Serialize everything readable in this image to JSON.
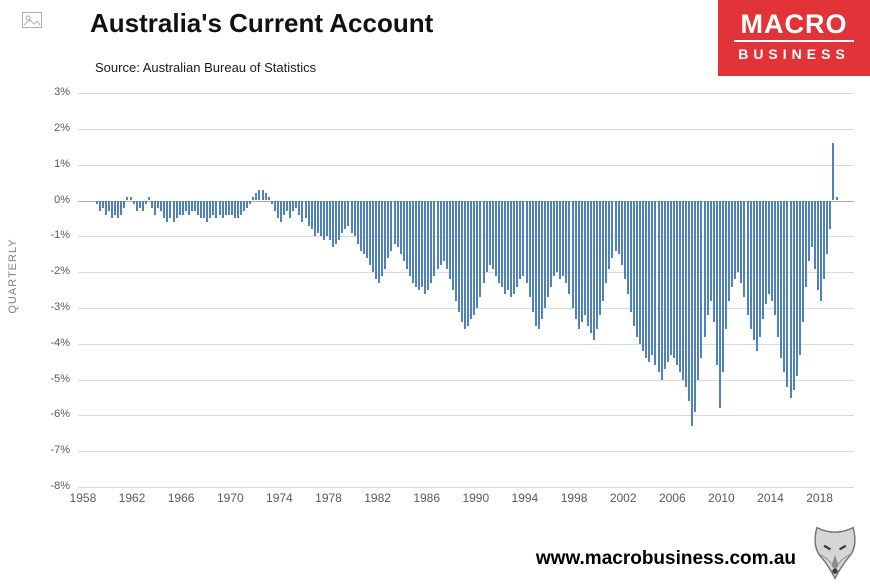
{
  "header": {
    "title": "Australia's Current Account",
    "source": "Source: Australian Bureau of Statistics"
  },
  "logo": {
    "line1": "MACRO",
    "line2": "BUSINESS",
    "bg_color": "#e23438"
  },
  "footer": {
    "website": "www.macrobusiness.com.au"
  },
  "chart_data": {
    "type": "bar",
    "title": "Australia's Current Account",
    "subtitle": "Source: Australian Bureau of Statistics",
    "ylabel": "QUARTERLY",
    "xlabel": "",
    "unit": "percent, quarterly current account balance",
    "bar_color": "#4f81bd",
    "grid": true,
    "legend": "none",
    "ylim": [
      -8,
      3
    ],
    "xlim": [
      1957.6,
      2020.8
    ],
    "yticks": [
      {
        "label": "3%",
        "value": 3
      },
      {
        "label": "2%",
        "value": 2
      },
      {
        "label": "1%",
        "value": 1
      },
      {
        "label": "0%",
        "value": 0
      },
      {
        "label": "-1%",
        "value": -1
      },
      {
        "label": "-2%",
        "value": -2
      },
      {
        "label": "-3%",
        "value": -3
      },
      {
        "label": "-4%",
        "value": -4
      },
      {
        "label": "-5%",
        "value": -5
      },
      {
        "label": "-6%",
        "value": -6
      },
      {
        "label": "-7%",
        "value": -7
      },
      {
        "label": "-8%",
        "value": -8
      }
    ],
    "xticks": [
      1958,
      1962,
      1966,
      1970,
      1974,
      1978,
      1982,
      1986,
      1990,
      1994,
      1998,
      2002,
      2006,
      2010,
      2014,
      2018
    ],
    "series_start_year": 1959,
    "period": "quarterly",
    "values": [
      -0.1,
      -0.3,
      -0.2,
      -0.4,
      -0.3,
      -0.5,
      -0.4,
      -0.5,
      -0.4,
      -0.2,
      0.1,
      0.1,
      -0.1,
      -0.3,
      -0.2,
      -0.3,
      -0.1,
      0.1,
      -0.2,
      -0.4,
      -0.2,
      -0.3,
      -0.5,
      -0.6,
      -0.5,
      -0.6,
      -0.5,
      -0.4,
      -0.4,
      -0.3,
      -0.4,
      -0.3,
      -0.3,
      -0.4,
      -0.5,
      -0.5,
      -0.6,
      -0.5,
      -0.4,
      -0.5,
      -0.4,
      -0.5,
      -0.4,
      -0.4,
      -0.4,
      -0.5,
      -0.5,
      -0.4,
      -0.3,
      -0.2,
      -0.1,
      0.1,
      0.2,
      0.3,
      0.3,
      0.2,
      0.1,
      -0.1,
      -0.3,
      -0.5,
      -0.6,
      -0.4,
      -0.3,
      -0.5,
      -0.3,
      -0.2,
      -0.4,
      -0.6,
      -0.5,
      -0.7,
      -0.8,
      -1.0,
      -0.9,
      -1.0,
      -1.1,
      -1.0,
      -1.1,
      -1.3,
      -1.2,
      -1.1,
      -0.9,
      -0.8,
      -0.7,
      -0.9,
      -1.0,
      -1.2,
      -1.4,
      -1.5,
      -1.6,
      -1.8,
      -2.0,
      -2.2,
      -2.3,
      -2.1,
      -1.9,
      -1.6,
      -1.4,
      -1.2,
      -1.3,
      -1.5,
      -1.7,
      -1.9,
      -2.1,
      -2.3,
      -2.4,
      -2.5,
      -2.4,
      -2.6,
      -2.5,
      -2.3,
      -2.1,
      -1.9,
      -1.8,
      -1.7,
      -1.9,
      -2.2,
      -2.5,
      -2.8,
      -3.1,
      -3.4,
      -3.6,
      -3.5,
      -3.3,
      -3.2,
      -3.0,
      -2.7,
      -2.3,
      -2.0,
      -1.8,
      -1.9,
      -2.1,
      -2.3,
      -2.4,
      -2.6,
      -2.5,
      -2.7,
      -2.6,
      -2.4,
      -2.2,
      -2.1,
      -2.3,
      -2.7,
      -3.1,
      -3.5,
      -3.6,
      -3.3,
      -3.0,
      -2.7,
      -2.4,
      -2.1,
      -2.0,
      -2.2,
      -2.1,
      -2.3,
      -2.6,
      -3.0,
      -3.3,
      -3.6,
      -3.4,
      -3.2,
      -3.5,
      -3.7,
      -3.9,
      -3.6,
      -3.2,
      -2.8,
      -2.3,
      -1.9,
      -1.6,
      -1.4,
      -1.5,
      -1.8,
      -2.2,
      -2.6,
      -3.1,
      -3.5,
      -3.8,
      -4.0,
      -4.2,
      -4.4,
      -4.5,
      -4.3,
      -4.6,
      -4.8,
      -5.0,
      -4.7,
      -4.5,
      -4.3,
      -4.4,
      -4.6,
      -4.8,
      -5.0,
      -5.2,
      -5.6,
      -6.3,
      -5.9,
      -5.0,
      -4.4,
      -3.8,
      -3.2,
      -2.8,
      -3.4,
      -4.6,
      -5.8,
      -4.8,
      -3.6,
      -2.8,
      -2.4,
      -2.2,
      -2.0,
      -2.3,
      -2.7,
      -3.2,
      -3.6,
      -3.9,
      -4.2,
      -3.8,
      -3.3,
      -2.9,
      -2.6,
      -2.8,
      -3.2,
      -3.8,
      -4.4,
      -4.8,
      -5.2,
      -5.5,
      -5.3,
      -4.9,
      -4.3,
      -3.4,
      -2.4,
      -1.7,
      -1.3,
      -1.9,
      -2.5,
      -2.8,
      -2.2,
      -1.5,
      -0.8,
      1.6,
      0.1
    ]
  }
}
